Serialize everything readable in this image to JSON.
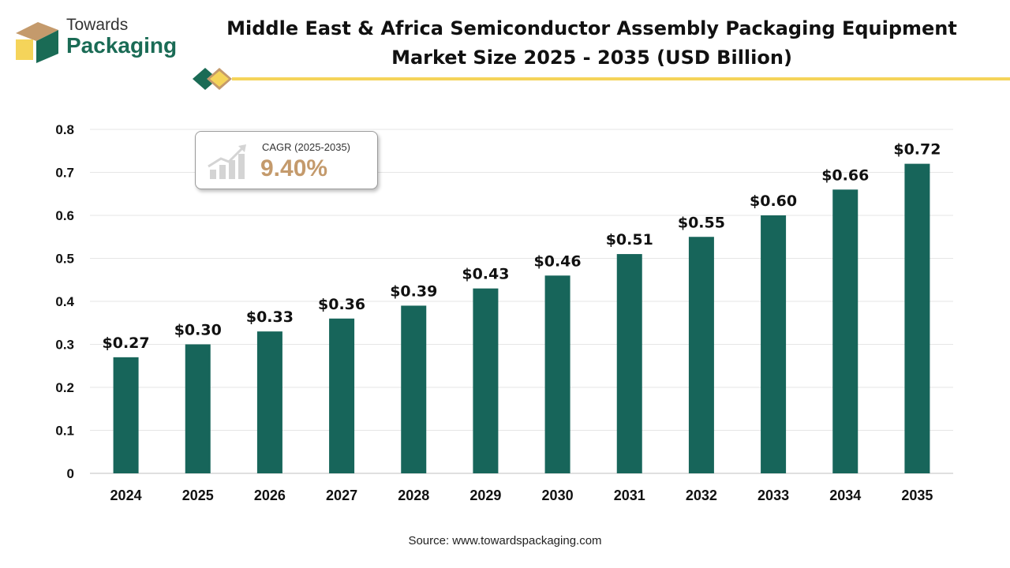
{
  "logo": {
    "line1": "Towards",
    "line2": "Packaging"
  },
  "title": {
    "line1": "Middle East & Africa Semiconductor Assembly Packaging Equipment",
    "line2": "Market Size 2025 - 2035 (USD Billion)"
  },
  "cagr": {
    "label": "CAGR (2025-2035)",
    "value": "9.40%"
  },
  "source": "Source: www.towardspackaging.com",
  "colors": {
    "bar": "#17655a",
    "accent": "#f5d45a",
    "cagr": "#c49a6c",
    "brand": "#1a6b55"
  },
  "chart_data": {
    "type": "bar",
    "categories": [
      "2024",
      "2025",
      "2026",
      "2027",
      "2028",
      "2029",
      "2030",
      "2031",
      "2032",
      "2033",
      "2034",
      "2035"
    ],
    "values": [
      0.27,
      0.3,
      0.33,
      0.36,
      0.39,
      0.43,
      0.46,
      0.51,
      0.55,
      0.6,
      0.66,
      0.72
    ],
    "data_labels": [
      "$0.27",
      "$0.30",
      "$0.33",
      "$0.36",
      "$0.39",
      "$0.43",
      "$0.46",
      "$0.51",
      "$0.55",
      "$0.60",
      "$0.66",
      "$0.72"
    ],
    "yticks": [
      "0",
      "0.1",
      "0.2",
      "0.3",
      "0.4",
      "0.5",
      "0.6",
      "0.7",
      "0.8"
    ],
    "ylim": [
      0,
      0.8
    ],
    "grid": true,
    "xlabel": "",
    "ylabel": ""
  }
}
